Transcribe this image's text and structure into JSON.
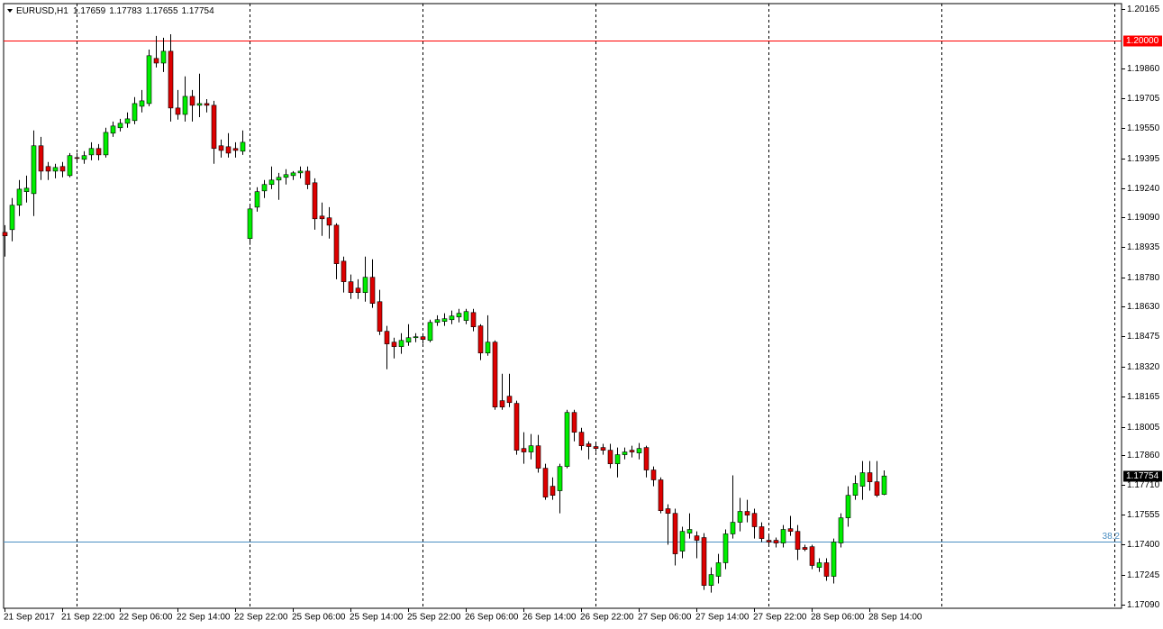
{
  "chart_data": {
    "type": "candlestick",
    "title": "EURUSD,H1",
    "categories": [
      "21 Sep 2017",
      null,
      null,
      null,
      null,
      null,
      null,
      null,
      "21 Sep 22:00",
      null,
      null,
      null,
      null,
      null,
      null,
      null,
      "22 Sep 06:00",
      null,
      null,
      null,
      null,
      null,
      null,
      null,
      "22 Sep 14:00",
      null,
      null,
      null,
      null,
      null,
      null,
      null,
      "22 Sep 22:00",
      null,
      null,
      null,
      null,
      null,
      null,
      null,
      "25 Sep 06:00",
      null,
      null,
      null,
      null,
      null,
      null,
      null,
      "25 Sep 14:00",
      null,
      null,
      null,
      null,
      null,
      null,
      null,
      "25 Sep 22:00",
      null,
      null,
      null,
      null,
      null,
      null,
      null,
      "26 Sep 06:00",
      null,
      null,
      null,
      null,
      null,
      null,
      null,
      "26 Sep 14:00",
      null,
      null,
      null,
      null,
      null,
      null,
      null,
      "26 Sep 22:00",
      null,
      null,
      null,
      null,
      null,
      null,
      null,
      "27 Sep 06:00",
      null,
      null,
      null,
      null,
      null,
      null,
      null,
      "27 Sep 14:00",
      null,
      null,
      null,
      null,
      null,
      null,
      null,
      "27 Sep 22:00",
      null,
      null,
      null,
      null,
      null,
      null,
      null,
      "28 Sep 06:00",
      null,
      null,
      null,
      null,
      null,
      null,
      null,
      "28 Sep 14:00",
      null,
      null
    ],
    "open": [
      1.19012,
      1.19026,
      1.19152,
      1.19222,
      1.19212,
      1.19459,
      1.19352,
      1.19328,
      1.19352,
      1.19305,
      1.19398,
      1.19389,
      1.19412,
      1.19445,
      1.19412,
      1.19524,
      1.19552,
      1.19575,
      1.19589,
      1.19663,
      1.19677,
      1.1991,
      1.19886,
      1.19947,
      1.19654,
      1.19621,
      1.19714,
      1.19668,
      1.19677,
      1.19668,
      1.19459,
      1.19454,
      1.19445,
      1.19431,
      1.1898,
      1.19142,
      1.19226,
      1.19259,
      1.19282,
      1.19296,
      1.19305,
      1.19319,
      1.19328,
      1.19268,
      1.19096,
      1.19087,
      1.19049,
      1.18863,
      1.18757,
      1.18724,
      1.18701,
      1.1878,
      1.18654,
      1.18501,
      1.18445,
      1.18422,
      1.18445,
      1.18468,
      1.18473,
      1.18454,
      1.18547,
      1.18552,
      1.18561,
      1.18575,
      1.18557,
      1.18598,
      1.18529,
      1.18389,
      1.18445,
      1.18143,
      1.18166,
      1.18129,
      1.17896,
      1.17878,
      1.1791,
      1.17794,
      1.17701,
      1.17678,
      1.17803,
      1.18082,
      1.1798,
      1.1792,
      1.17906,
      1.17901,
      1.17887,
      1.17817,
      1.17864,
      1.17887,
      1.17873,
      1.17901,
      1.17785,
      1.17734,
      1.17585,
      1.17561,
      1.17366,
      1.17459,
      1.17445,
      1.17436,
      1.17189,
      1.17236,
      1.17306,
      1.17455,
      1.17515,
      1.17571,
      1.17561,
      1.17492,
      1.17422,
      1.17422,
      1.17408,
      1.17482,
      1.17468,
      1.17385,
      1.17389,
      1.17282,
      1.17306,
      1.17236,
      1.17408,
      1.17538,
      1.17654,
      1.17701,
      1.17771,
      1.17724,
      1.17659
    ],
    "high": [
      1.19049,
      1.19189,
      1.19282,
      1.19305,
      1.19538,
      1.19505,
      1.19375,
      1.19366,
      1.19375,
      1.19421,
      1.19421,
      1.19431,
      1.19477,
      1.19468,
      1.19552,
      1.19584,
      1.19598,
      1.19631,
      1.1971,
      1.19747,
      1.19956,
      1.20026,
      1.20017,
      1.20035,
      1.19747,
      1.19817,
      1.19747,
      1.19831,
      1.197,
      1.19691,
      1.19491,
      1.19524,
      1.19477,
      1.19538,
      1.19152,
      1.19245,
      1.19282,
      1.19352,
      1.19319,
      1.19338,
      1.19328,
      1.19352,
      1.19352,
      1.19291,
      1.19166,
      1.19142,
      1.19059,
      1.18887,
      1.18794,
      1.1877,
      1.18887,
      1.18873,
      1.18715,
      1.18529,
      1.18468,
      1.18491,
      1.18538,
      1.18491,
      1.18491,
      1.18561,
      1.18584,
      1.18594,
      1.18608,
      1.18617,
      1.18617,
      1.18617,
      1.18538,
      1.18584,
      1.18454,
      1.18282,
      1.18282,
      1.18143,
      1.1798,
      1.17971,
      1.17966,
      1.17817,
      1.17747,
      1.17817,
      1.18096,
      1.18096,
      1.18003,
      1.17933,
      1.17924,
      1.1792,
      1.1792,
      1.17901,
      1.17901,
      1.1791,
      1.17924,
      1.1791,
      1.17803,
      1.17747,
      1.17608,
      1.17585,
      1.17492,
      1.17561,
      1.17468,
      1.17459,
      1.17282,
      1.17352,
      1.17478,
      1.17757,
      1.17641,
      1.17631,
      1.17585,
      1.17515,
      1.17445,
      1.17436,
      1.17501,
      1.17548,
      1.17501,
      1.17399,
      1.17399,
      1.17329,
      1.17329,
      1.17431,
      1.17561,
      1.17701,
      1.17757,
      1.17831,
      1.17831,
      1.17831,
      1.17783
    ],
    "low": [
      1.18887,
      1.18966,
      1.19096,
      1.19166,
      1.19096,
      1.19282,
      1.19282,
      1.19291,
      1.19296,
      1.19296,
      1.19375,
      1.19366,
      1.19384,
      1.19384,
      1.19398,
      1.19505,
      1.19533,
      1.19552,
      1.1957,
      1.19631,
      1.19663,
      1.19863,
      1.1984,
      1.19584,
      1.19594,
      1.19584,
      1.19584,
      1.19607,
      1.19631,
      1.19366,
      1.19398,
      1.19398,
      1.19398,
      1.19412,
      1.18947,
      1.19119,
      1.19189,
      1.19235,
      1.1918,
      1.19259,
      1.19282,
      1.19291,
      1.19235,
      1.19026,
      1.18994,
      1.1898,
      1.1877,
      1.18701,
      1.18668,
      1.18668,
      1.18654,
      1.18622,
      1.18482,
      1.18305,
      1.18361,
      1.18385,
      1.18426,
      1.18445,
      1.18436,
      1.18445,
      1.18529,
      1.18529,
      1.18538,
      1.18547,
      1.18538,
      1.18501,
      1.18352,
      1.18375,
      1.18096,
      1.18096,
      1.1811,
      1.17864,
      1.17817,
      1.1784,
      1.17771,
      1.17631,
      1.17631,
      1.17561,
      1.17794,
      1.17933,
      1.17887,
      1.1784,
      1.17878,
      1.17864,
      1.17794,
      1.17747,
      1.1784,
      1.1785,
      1.1784,
      1.17747,
      1.17701,
      1.17561,
      1.17399,
      1.17292,
      1.17329,
      1.17431,
      1.17329,
      1.17166,
      1.17152,
      1.17199,
      1.17273,
      1.17431,
      1.17468,
      1.17515,
      1.17431,
      1.17413,
      1.17399,
      1.17385,
      1.17385,
      1.17445,
      1.1732,
      1.17366,
      1.17273,
      1.17259,
      1.17213,
      1.17199,
      1.17385,
      1.17492,
      1.17631,
      1.17631,
      1.17678,
      1.17645,
      1.17655
    ],
    "close": [
      1.18994,
      1.19152,
      1.19235,
      1.1924,
      1.19459,
      1.19328,
      1.19328,
      1.19347,
      1.19328,
      1.19408,
      1.19394,
      1.19408,
      1.19445,
      1.19412,
      1.19528,
      1.19561,
      1.19575,
      1.19598,
      1.19677,
      1.19691,
      1.19924,
      1.19886,
      1.19947,
      1.19654,
      1.19621,
      1.19714,
      1.19668,
      1.19677,
      1.19668,
      1.19445,
      1.19435,
      1.19421,
      1.19435,
      1.19477,
      1.19133,
      1.19222,
      1.19259,
      1.19282,
      1.19296,
      1.1931,
      1.19319,
      1.19328,
      1.19259,
      1.19082,
      1.19082,
      1.19049,
      1.1885,
      1.18757,
      1.18701,
      1.18701,
      1.1878,
      1.18645,
      1.18501,
      1.18436,
      1.18422,
      1.18454,
      1.18468,
      1.18473,
      1.18459,
      1.18547,
      1.18561,
      1.18566,
      1.1858,
      1.18594,
      1.18603,
      1.18524,
      1.18389,
      1.18445,
      1.1811,
      1.1811,
      1.18133,
      1.17887,
      1.17878,
      1.1791,
      1.17794,
      1.17645,
      1.17654,
      1.17803,
      1.18082,
      1.1798,
      1.1791,
      1.17906,
      1.17896,
      1.17887,
      1.17817,
      1.17864,
      1.17878,
      1.17878,
      1.17896,
      1.17785,
      1.17734,
      1.17575,
      1.17561,
      1.17352,
      1.17468,
      1.17478,
      1.17422,
      1.17189,
      1.17245,
      1.17306,
      1.17455,
      1.17515,
      1.17571,
      1.17552,
      1.17492,
      1.17431,
      1.17413,
      1.17408,
      1.17478,
      1.17468,
      1.17375,
      1.17375,
      1.17292,
      1.17306,
      1.17236,
      1.17413,
      1.17538,
      1.17654,
      1.17715,
      1.17771,
      1.17724,
      1.17654,
      1.17754
    ],
    "up_color": "#00ee00",
    "down_color": "#dd0000",
    "ylim": [
      1.17071,
      1.20193
    ],
    "yticks": [
      1.20165,
      {
        "value": 1.1986,
        "label": "1.19860"
      },
      1.19705,
      {
        "value": 1.1955,
        "label": "1.19550"
      },
      1.19395,
      {
        "value": 1.1924,
        "label": "1.19240"
      },
      {
        "value": 1.1909,
        "label": "1.19090"
      },
      1.18935,
      {
        "value": 1.1878,
        "label": "1.18780"
      },
      {
        "value": 1.1863,
        "label": "1.18630"
      },
      1.18475,
      {
        "value": 1.1832,
        "label": "1.18320"
      },
      1.18165,
      1.18005,
      {
        "value": 1.1786,
        "label": "1.17860"
      },
      {
        "value": 1.1771,
        "label": "1.17710"
      },
      1.17555,
      {
        "value": 1.174,
        "label": "1.17400"
      },
      1.17245,
      {
        "value": 1.1709,
        "label": "1.17090"
      }
    ],
    "hlines": [
      {
        "value": 1.2,
        "label": "1.20000",
        "color": "#ff0000",
        "label_at": "axis"
      },
      {
        "value": 1.17416,
        "label": "38.2",
        "color": "#4a8ec2",
        "label_at": "line"
      }
    ]
  }
}
